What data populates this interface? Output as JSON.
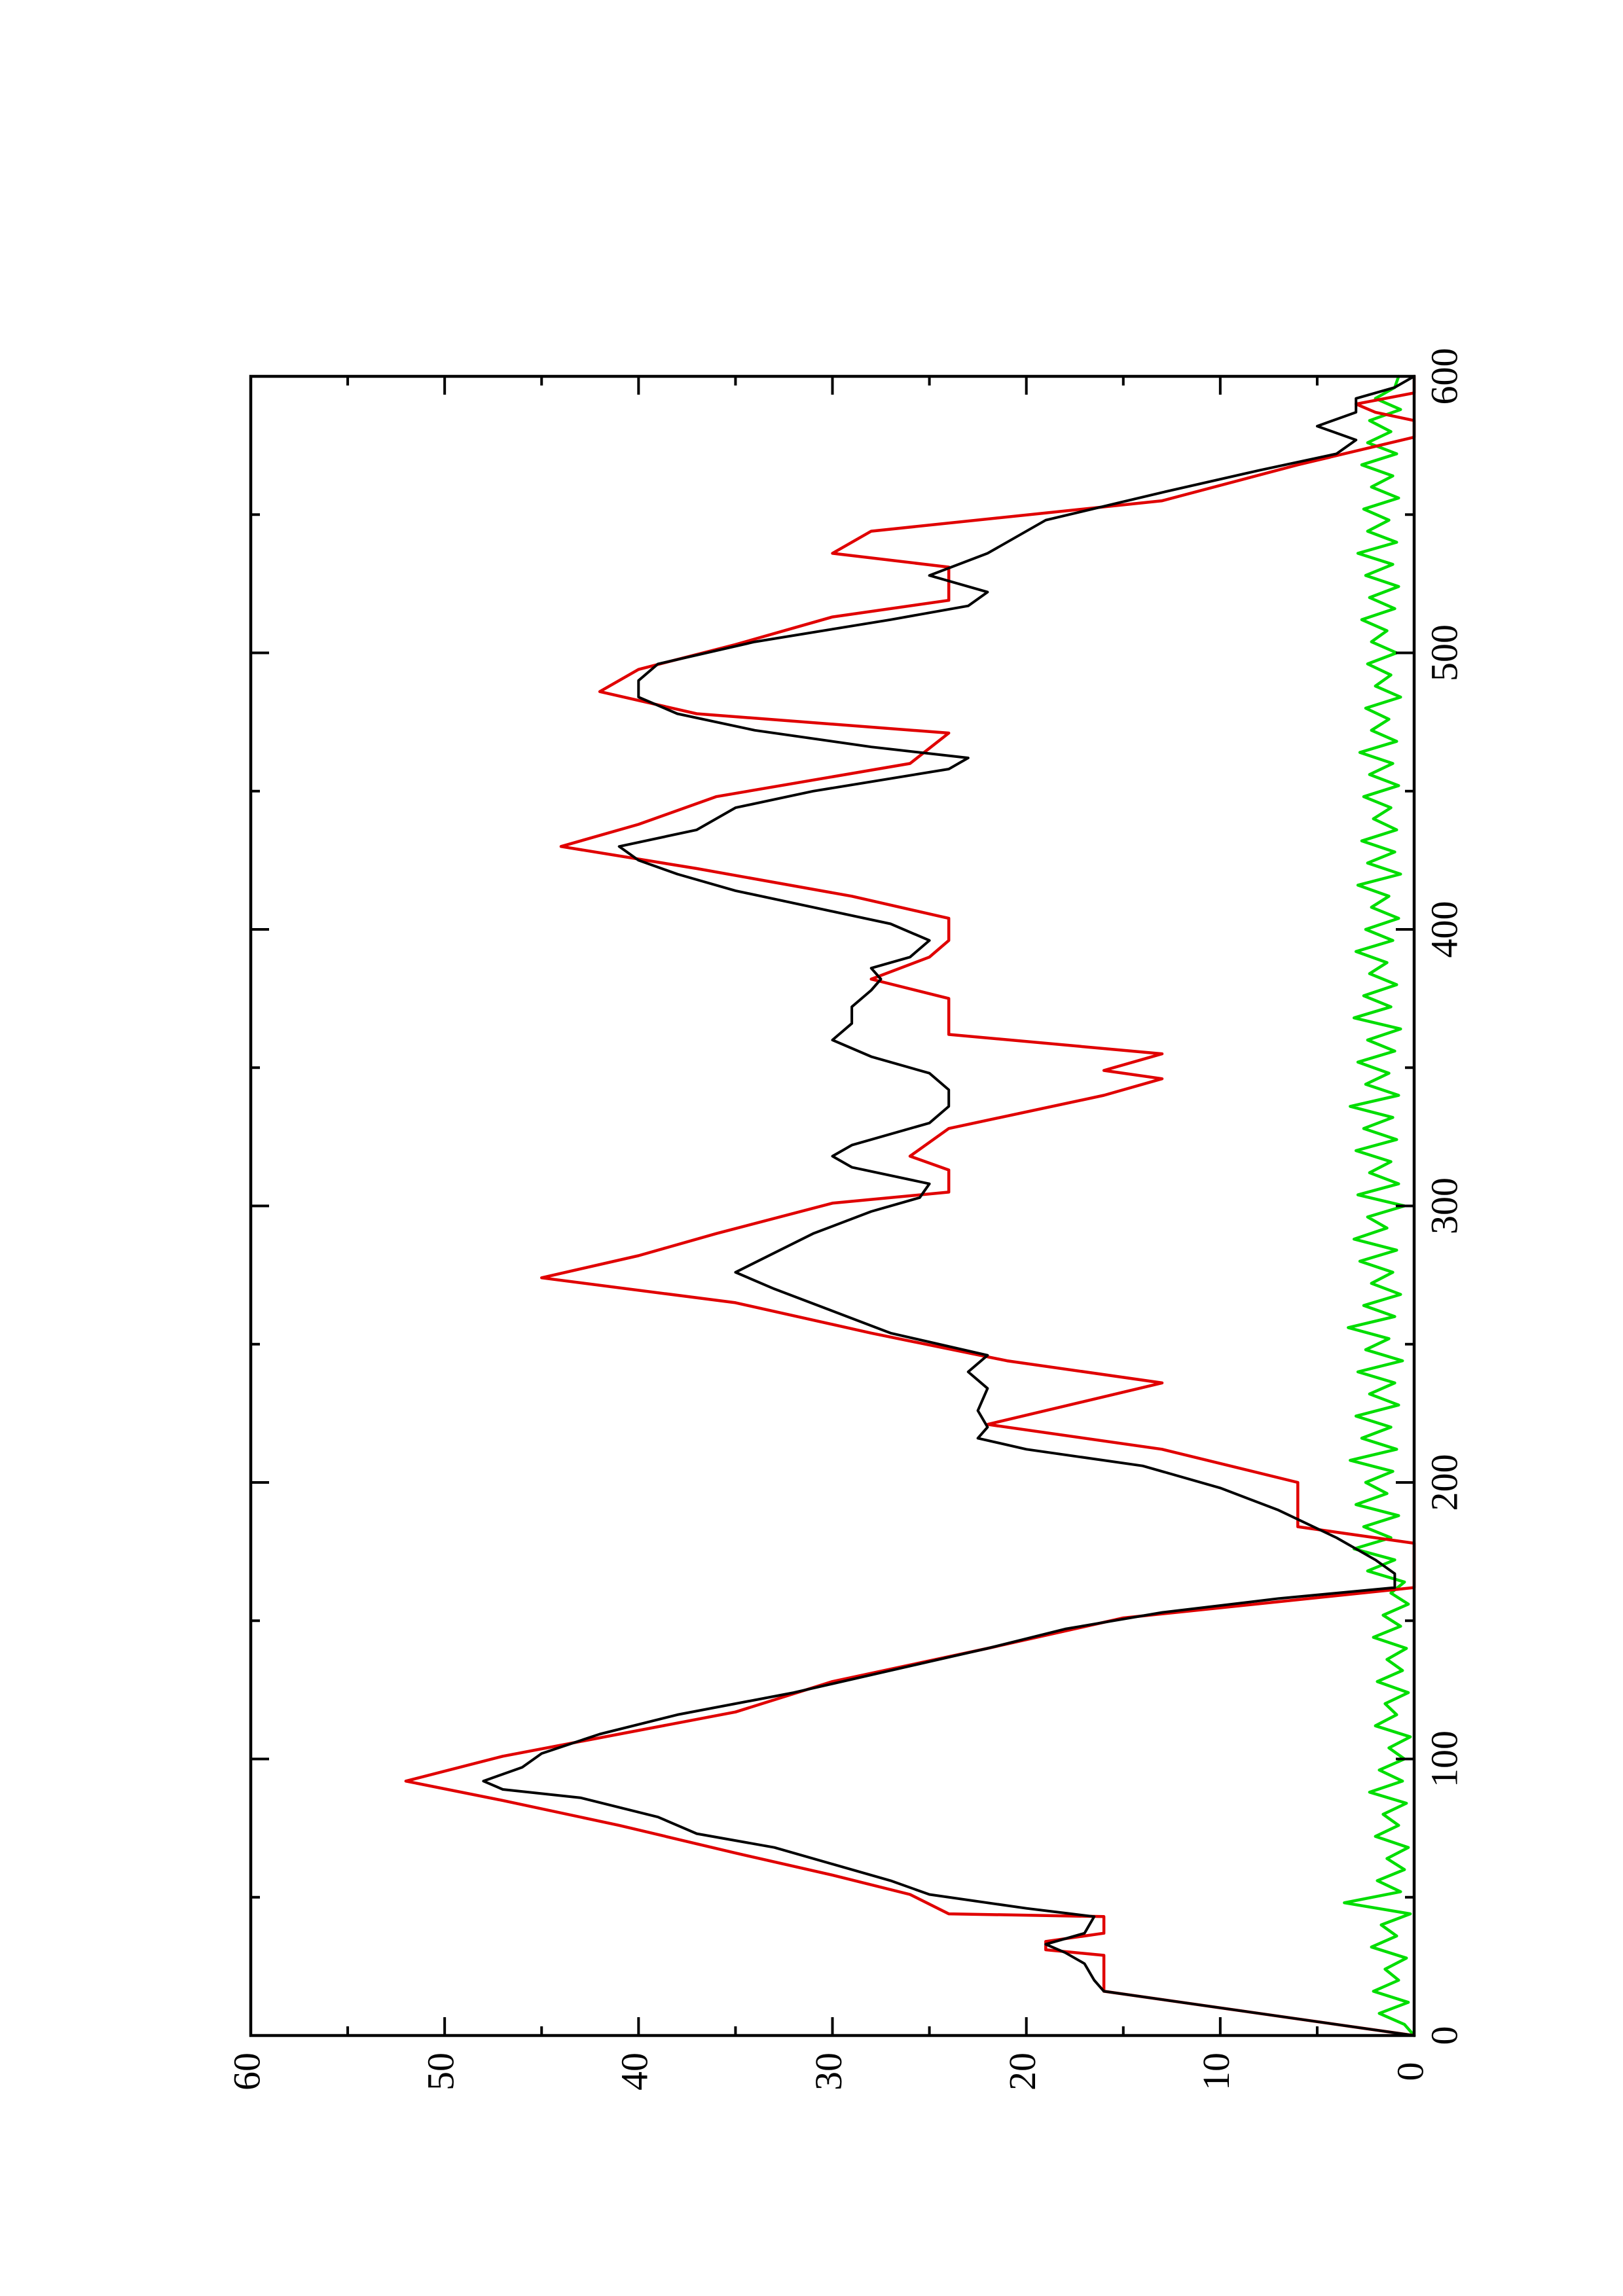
{
  "chart_data": {
    "type": "line",
    "orientation": "rotated 90 degrees counter-clockwise",
    "title": "",
    "xlabel": "",
    "ylabel": "",
    "xlim": [
      0,
      600
    ],
    "ylim": [
      0,
      60
    ],
    "x_ticks": [
      0,
      100,
      200,
      300,
      400,
      500,
      600
    ],
    "x_tick_labels": [
      "0",
      "100",
      "200",
      "300",
      "400",
      "500",
      "600"
    ],
    "x_minor_ticks": [
      50,
      150,
      250,
      350,
      450,
      550
    ],
    "y_ticks": [
      0,
      10,
      20,
      30,
      40,
      50,
      60
    ],
    "y_tick_labels": [
      "0",
      "10",
      "20",
      "30",
      "40",
      "50",
      "60"
    ],
    "y_minor_ticks": [
      5,
      15,
      25,
      35,
      45,
      55
    ],
    "grid": false,
    "legend": "none",
    "series": [
      {
        "color": "#e00000",
        "step": true,
        "points": [
          [
            0,
            0
          ],
          [
            16,
            16
          ],
          [
            29,
            16
          ],
          [
            31,
            19
          ],
          [
            34,
            19
          ],
          [
            37,
            16
          ],
          [
            43,
            16
          ],
          [
            44,
            24
          ],
          [
            51,
            26
          ],
          [
            58,
            30
          ],
          [
            66,
            35
          ],
          [
            76,
            41
          ],
          [
            85,
            47
          ],
          [
            92,
            52
          ],
          [
            101,
            47
          ],
          [
            109,
            41
          ],
          [
            117,
            35
          ],
          [
            128,
            30
          ],
          [
            140,
            22
          ],
          [
            151,
            15
          ],
          [
            162,
            0
          ],
          [
            178,
            0
          ],
          [
            184,
            6
          ],
          [
            200,
            6
          ],
          [
            212,
            13
          ],
          [
            221,
            22
          ],
          [
            236,
            13
          ],
          [
            244,
            21
          ],
          [
            254,
            28
          ],
          [
            265,
            35
          ],
          [
            274,
            45
          ],
          [
            282,
            40
          ],
          [
            290,
            36
          ],
          [
            301,
            30
          ],
          [
            305,
            24
          ],
          [
            313,
            24
          ],
          [
            318,
            26
          ],
          [
            328,
            24
          ],
          [
            340,
            16
          ],
          [
            346,
            13
          ],
          [
            349,
            16
          ],
          [
            355,
            13
          ],
          [
            362,
            24
          ],
          [
            375,
            24
          ],
          [
            382,
            28
          ],
          [
            390,
            25
          ],
          [
            396,
            24
          ],
          [
            404,
            24
          ],
          [
            412,
            29
          ],
          [
            422,
            37
          ],
          [
            430,
            44
          ],
          [
            438,
            40
          ],
          [
            448,
            36
          ],
          [
            460,
            26
          ],
          [
            471,
            24
          ],
          [
            478,
            37
          ],
          [
            486,
            42
          ],
          [
            494,
            40
          ],
          [
            503,
            35
          ],
          [
            513,
            30
          ],
          [
            519,
            24
          ],
          [
            531,
            24
          ],
          [
            536,
            30
          ],
          [
            544,
            28
          ],
          [
            555,
            13
          ],
          [
            568,
            6
          ],
          [
            578,
            0
          ],
          [
            584,
            0
          ],
          [
            587,
            2
          ],
          [
            590,
            3
          ],
          [
            594,
            0
          ],
          [
            600,
            0
          ]
        ]
      },
      {
        "color": "#000000",
        "step": false,
        "points": [
          [
            0,
            0
          ],
          [
            8,
            8
          ],
          [
            16,
            16
          ],
          [
            20,
            16.5
          ],
          [
            26,
            17
          ],
          [
            30,
            18
          ],
          [
            33,
            19
          ],
          [
            37,
            17
          ],
          [
            43,
            16.5
          ],
          [
            46,
            20
          ],
          [
            51,
            25
          ],
          [
            56,
            27
          ],
          [
            62,
            30
          ],
          [
            68,
            33
          ],
          [
            73,
            37
          ],
          [
            79,
            39
          ],
          [
            86,
            43
          ],
          [
            89,
            47
          ],
          [
            92,
            48
          ],
          [
            97,
            46
          ],
          [
            102,
            45
          ],
          [
            109,
            42
          ],
          [
            116,
            38
          ],
          [
            124,
            32
          ],
          [
            132,
            27
          ],
          [
            140,
            22
          ],
          [
            147,
            18
          ],
          [
            153,
            13
          ],
          [
            158,
            7
          ],
          [
            162,
            1
          ],
          [
            167,
            1
          ],
          [
            172,
            2
          ],
          [
            180,
            4
          ],
          [
            190,
            7
          ],
          [
            198,
            10
          ],
          [
            206,
            14
          ],
          [
            212,
            20
          ],
          [
            216,
            22.5
          ],
          [
            220,
            22
          ],
          [
            226,
            22.5
          ],
          [
            234,
            22
          ],
          [
            240,
            23
          ],
          [
            246,
            22
          ],
          [
            254,
            27
          ],
          [
            262,
            30
          ],
          [
            270,
            33
          ],
          [
            276,
            35
          ],
          [
            283,
            33
          ],
          [
            290,
            31
          ],
          [
            298,
            28
          ],
          [
            303,
            25.5
          ],
          [
            308,
            25
          ],
          [
            314,
            29
          ],
          [
            318,
            30
          ],
          [
            322,
            29
          ],
          [
            330,
            25
          ],
          [
            336,
            24
          ],
          [
            342,
            24
          ],
          [
            348,
            25
          ],
          [
            354,
            28
          ],
          [
            360,
            30
          ],
          [
            366,
            29
          ],
          [
            372,
            29
          ],
          [
            378,
            28
          ],
          [
            382,
            27.5
          ],
          [
            386,
            28
          ],
          [
            390,
            26
          ],
          [
            396,
            25
          ],
          [
            402,
            27
          ],
          [
            408,
            31
          ],
          [
            414,
            35
          ],
          [
            420,
            38
          ],
          [
            425,
            40
          ],
          [
            430,
            41
          ],
          [
            436,
            37
          ],
          [
            444,
            35
          ],
          [
            450,
            31
          ],
          [
            458,
            24
          ],
          [
            462,
            23
          ],
          [
            466,
            28
          ],
          [
            472,
            34
          ],
          [
            478,
            38
          ],
          [
            484,
            40
          ],
          [
            490,
            40
          ],
          [
            496,
            39
          ],
          [
            504,
            34
          ],
          [
            512,
            27
          ],
          [
            517,
            23
          ],
          [
            522,
            22
          ],
          [
            528,
            25
          ],
          [
            536,
            22
          ],
          [
            548,
            19
          ],
          [
            558,
            13
          ],
          [
            566,
            8
          ],
          [
            572,
            4
          ],
          [
            577,
            3
          ],
          [
            582,
            5
          ],
          [
            587,
            3
          ],
          [
            592,
            3
          ],
          [
            596,
            1
          ],
          [
            600,
            0
          ]
        ]
      },
      {
        "color": "#00dd00",
        "step": false,
        "points": [
          [
            0,
            0
          ],
          [
            4,
            0.5
          ],
          [
            8,
            1.8
          ],
          [
            12,
            0.3
          ],
          [
            16,
            2.1
          ],
          [
            20,
            0.8
          ],
          [
            24,
            1.5
          ],
          [
            28,
            0.4
          ],
          [
            32,
            2.2
          ],
          [
            36,
            0.9
          ],
          [
            40,
            1.7
          ],
          [
            44,
            0.2
          ],
          [
            48,
            3.6
          ],
          [
            52,
            0.7
          ],
          [
            56,
            1.9
          ],
          [
            60,
            0.5
          ],
          [
            64,
            1.4
          ],
          [
            68,
            0.3
          ],
          [
            72,
            2.0
          ],
          [
            76,
            0.8
          ],
          [
            80,
            1.6
          ],
          [
            84,
            0.4
          ],
          [
            88,
            2.3
          ],
          [
            92,
            0.6
          ],
          [
            96,
            1.8
          ],
          [
            100,
            0.5
          ],
          [
            104,
            1.3
          ],
          [
            108,
            0.2
          ],
          [
            112,
            2.0
          ],
          [
            116,
            0.9
          ],
          [
            120,
            1.5
          ],
          [
            124,
            0.3
          ],
          [
            128,
            1.9
          ],
          [
            132,
            0.6
          ],
          [
            136,
            1.4
          ],
          [
            140,
            0.4
          ],
          [
            144,
            2.1
          ],
          [
            148,
            0.7
          ],
          [
            152,
            1.6
          ],
          [
            156,
            0.3
          ],
          [
            160,
            1.2
          ],
          [
            164,
            0.5
          ],
          [
            168,
            2.4
          ],
          [
            172,
            1.0
          ],
          [
            176,
            3.1
          ],
          [
            180,
            1.2
          ],
          [
            184,
            2.6
          ],
          [
            188,
            0.8
          ],
          [
            192,
            3.0
          ],
          [
            196,
            1.4
          ],
          [
            200,
            2.5
          ],
          [
            204,
            1.1
          ],
          [
            208,
            3.3
          ],
          [
            212,
            0.9
          ],
          [
            216,
            2.7
          ],
          [
            220,
            1.2
          ],
          [
            224,
            3.0
          ],
          [
            228,
            0.8
          ],
          [
            232,
            2.3
          ],
          [
            236,
            1.0
          ],
          [
            240,
            2.9
          ],
          [
            244,
            0.6
          ],
          [
            248,
            2.5
          ],
          [
            252,
            1.3
          ],
          [
            256,
            3.4
          ],
          [
            260,
            1.0
          ],
          [
            264,
            2.6
          ],
          [
            268,
            0.7
          ],
          [
            272,
            2.2
          ],
          [
            276,
            1.1
          ],
          [
            280,
            2.8
          ],
          [
            284,
            0.9
          ],
          [
            288,
            3.1
          ],
          [
            292,
            1.4
          ],
          [
            296,
            2.4
          ],
          [
            300,
            0.5
          ],
          [
            304,
            2.9
          ],
          [
            308,
            0.8
          ],
          [
            312,
            2.3
          ],
          [
            316,
            1.2
          ],
          [
            320,
            3.0
          ],
          [
            324,
            0.9
          ],
          [
            328,
            2.6
          ],
          [
            332,
            1.1
          ],
          [
            336,
            3.3
          ],
          [
            340,
            0.8
          ],
          [
            344,
            2.5
          ],
          [
            348,
            1.3
          ],
          [
            352,
            2.9
          ],
          [
            356,
            1.0
          ],
          [
            360,
            2.4
          ],
          [
            364,
            0.7
          ],
          [
            368,
            3.1
          ],
          [
            372,
            1.2
          ],
          [
            376,
            2.6
          ],
          [
            380,
            0.9
          ],
          [
            384,
            2.3
          ],
          [
            388,
            1.4
          ],
          [
            392,
            3.0
          ],
          [
            396,
            1.1
          ],
          [
            400,
            2.5
          ],
          [
            404,
            0.8
          ],
          [
            408,
            2.2
          ],
          [
            412,
            1.3
          ],
          [
            416,
            2.9
          ],
          [
            420,
            0.7
          ],
          [
            424,
            2.4
          ],
          [
            428,
            1.0
          ],
          [
            432,
            2.7
          ],
          [
            436,
            0.9
          ],
          [
            440,
            2.1
          ],
          [
            444,
            1.2
          ],
          [
            448,
            2.6
          ],
          [
            452,
            0.8
          ],
          [
            456,
            2.3
          ],
          [
            460,
            1.1
          ],
          [
            464,
            2.8
          ],
          [
            468,
            0.9
          ],
          [
            472,
            2.2
          ],
          [
            476,
            1.3
          ],
          [
            480,
            2.5
          ],
          [
            484,
            0.7
          ],
          [
            488,
            2.0
          ],
          [
            492,
            1.2
          ],
          [
            496,
            2.4
          ],
          [
            500,
            0.9
          ],
          [
            504,
            2.2
          ],
          [
            508,
            1.4
          ],
          [
            512,
            2.7
          ],
          [
            516,
            1.0
          ],
          [
            520,
            2.3
          ],
          [
            524,
            0.8
          ],
          [
            528,
            2.5
          ],
          [
            532,
            1.1
          ],
          [
            536,
            2.9
          ],
          [
            540,
            0.9
          ],
          [
            544,
            2.4
          ],
          [
            548,
            1.3
          ],
          [
            552,
            2.6
          ],
          [
            556,
            0.8
          ],
          [
            560,
            2.2
          ],
          [
            564,
            1.1
          ],
          [
            568,
            2.7
          ],
          [
            572,
            0.9
          ],
          [
            576,
            2.4
          ],
          [
            580,
            1.2
          ],
          [
            584,
            2.3
          ],
          [
            588,
            0.7
          ],
          [
            592,
            2.0
          ],
          [
            596,
            1.0
          ],
          [
            600,
            0.8
          ]
        ]
      }
    ]
  }
}
